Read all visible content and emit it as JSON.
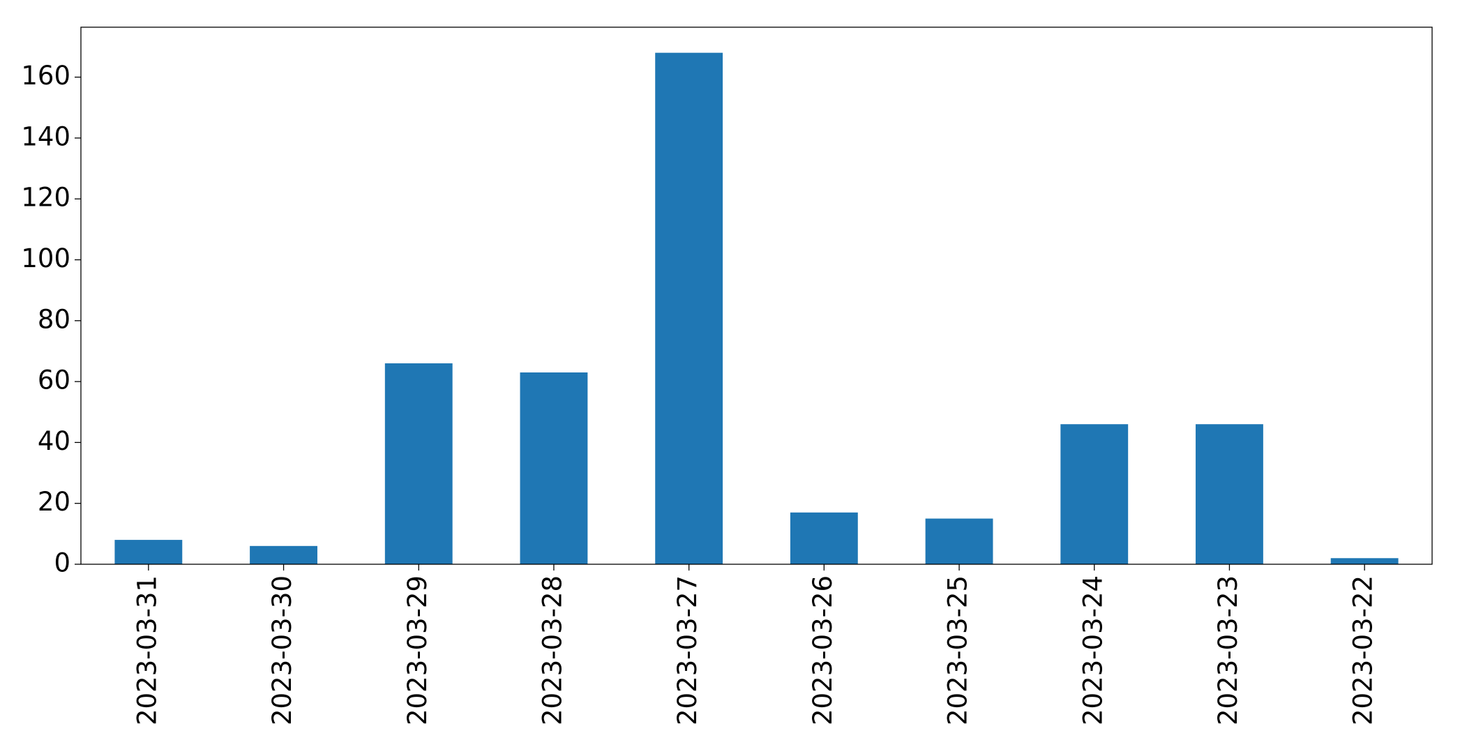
{
  "chart_data": {
    "type": "bar",
    "categories": [
      "2023-03-31",
      "2023-03-30",
      "2023-03-29",
      "2023-03-28",
      "2023-03-27",
      "2023-03-26",
      "2023-03-25",
      "2023-03-24",
      "2023-03-23",
      "2023-03-22"
    ],
    "values": [
      8,
      6,
      66,
      63,
      168,
      17,
      15,
      46,
      46,
      2
    ],
    "color": "#1f77b4",
    "ylim": [
      0,
      176.4
    ],
    "yticks": [
      0,
      20,
      40,
      60,
      80,
      100,
      120,
      140,
      160
    ],
    "grid": false
  }
}
